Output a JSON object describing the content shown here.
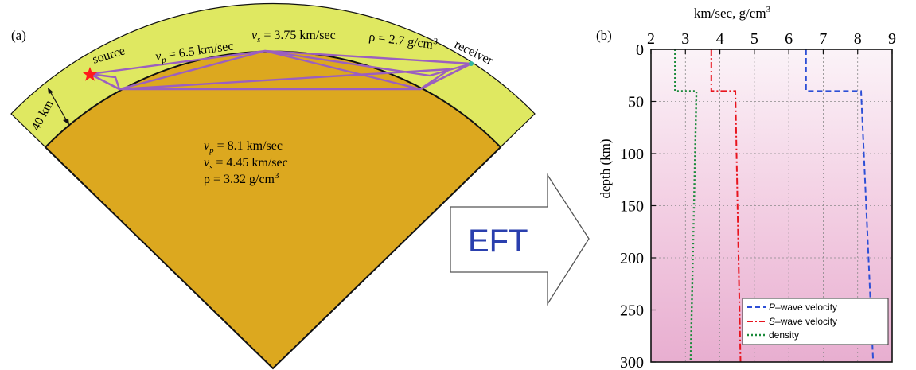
{
  "panel_a": {
    "label": "(a)",
    "source_label": "source",
    "receiver_label": "receiver",
    "crust_thickness_label": "40 km",
    "crust": {
      "vp_label": "vp = 6.5 km/sec",
      "vs_label": "vs = 3.75 km/sec",
      "rho_label": "ρ = 2.7 g/cm3"
    },
    "mantle": {
      "vp_label": "vp = 8.1 km/sec",
      "vs_label": "vs = 4.45 km/sec",
      "rho_label": "ρ = 3.32 g/cm3"
    },
    "colors": {
      "crust": "#dfe861",
      "mantle": "#dca81f",
      "rays": "#9b5fc0",
      "source_star": "#ff1a1a",
      "receiver_dot": "#2fb7a0"
    }
  },
  "arrow": {
    "label": "EFT",
    "label_color": "#2a3fae"
  },
  "panel_b": {
    "label": "(b)",
    "xlabel": "km/sec, g/cm3",
    "ylabel": "depth (km)",
    "legend": {
      "p": "P–wave velocity",
      "s": "S–wave velocity",
      "density": "density"
    }
  },
  "chart_data": {
    "type": "line",
    "xlabel": "km/sec, g/cm3",
    "ylabel": "depth (km)",
    "xlim": [
      2,
      9
    ],
    "ylim": [
      300,
      0
    ],
    "x_ticks": [
      2,
      3,
      4,
      5,
      6,
      7,
      8,
      9
    ],
    "y_ticks": [
      0,
      50,
      100,
      150,
      200,
      250,
      300
    ],
    "grid": true,
    "legend_position": "bottom-right",
    "series": [
      {
        "name": "P–wave velocity",
        "color": "#2d4fd6",
        "dash": "dashed",
        "points": [
          [
            6.5,
            0
          ],
          [
            6.5,
            40
          ],
          [
            8.1,
            40
          ],
          [
            8.45,
            300
          ]
        ]
      },
      {
        "name": "S–wave velocity",
        "color": "#e8141e",
        "dash": "dashdot",
        "points": [
          [
            3.75,
            0
          ],
          [
            3.75,
            40
          ],
          [
            4.45,
            40
          ],
          [
            4.6,
            300
          ]
        ]
      },
      {
        "name": "density",
        "color": "#1a8a3a",
        "dash": "dotted",
        "points": [
          [
            2.7,
            0
          ],
          [
            2.7,
            40
          ],
          [
            3.32,
            40
          ],
          [
            3.15,
            300
          ]
        ]
      }
    ]
  }
}
